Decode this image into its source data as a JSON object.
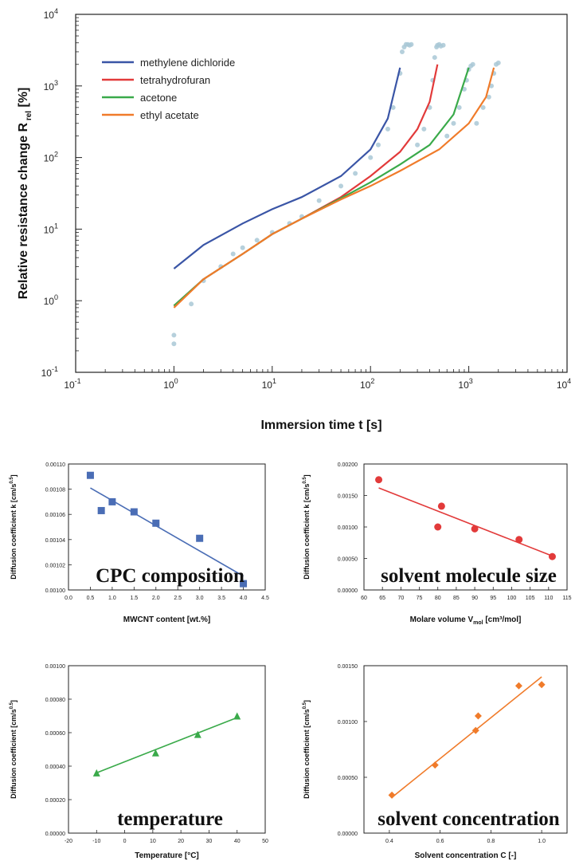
{
  "chart_data": [
    {
      "type": "line",
      "xlabel": "Immersion time t [s]",
      "ylabel": "Relative resistance change R",
      "ylabel_sub": "rel",
      "ylabel_unit": "[%]",
      "xscale": "log",
      "yscale": "log",
      "xlim": [
        0.1,
        10000
      ],
      "ylim": [
        0.1,
        10000
      ],
      "xticks": [
        {
          "v": 0.1,
          "b": "10",
          "e": "-1"
        },
        {
          "v": 1,
          "b": "10",
          "e": "0"
        },
        {
          "v": 10,
          "b": "10",
          "e": "1"
        },
        {
          "v": 100,
          "b": "10",
          "e": "2"
        },
        {
          "v": 1000,
          "b": "10",
          "e": "3"
        },
        {
          "v": 10000,
          "b": "10",
          "e": "4"
        }
      ],
      "yticks": [
        {
          "v": 0.1,
          "b": "10",
          "e": "-1"
        },
        {
          "v": 1,
          "b": "10",
          "e": "0"
        },
        {
          "v": 10,
          "b": "10",
          "e": "1"
        },
        {
          "v": 100,
          "b": "10",
          "e": "2"
        },
        {
          "v": 1000,
          "b": "10",
          "e": "3"
        },
        {
          "v": 10000,
          "b": "10",
          "e": "4"
        }
      ],
      "legend_position": "top-left",
      "series": [
        {
          "name": "methylene dichloride",
          "color": "#3a55a6",
          "x": [
            1,
            2,
            5,
            10,
            20,
            50,
            100,
            150,
            200
          ],
          "y": [
            2.8,
            6,
            12,
            19,
            28,
            55,
            130,
            350,
            1800
          ]
        },
        {
          "name": "tetrahydrofuran",
          "color": "#e23a3a",
          "x": [
            1,
            2,
            5,
            10,
            20,
            50,
            100,
            200,
            300,
            400,
            480
          ],
          "y": [
            0.85,
            2,
            4.5,
            8.5,
            14,
            28,
            55,
            120,
            250,
            600,
            2000
          ]
        },
        {
          "name": "acetone",
          "color": "#3aaa4a",
          "x": [
            1,
            2,
            5,
            10,
            20,
            50,
            100,
            200,
            400,
            700,
            1000
          ],
          "y": [
            0.85,
            2,
            4.5,
            8.5,
            14,
            27,
            45,
            80,
            150,
            400,
            1800
          ]
        },
        {
          "name": "ethyl acetate",
          "color": "#f07b2a",
          "x": [
            1,
            2,
            5,
            10,
            20,
            50,
            100,
            200,
            500,
            1000,
            1500,
            1800
          ],
          "y": [
            0.8,
            2,
            4.5,
            8.5,
            14,
            26,
            40,
            65,
            130,
            300,
            700,
            1800
          ]
        }
      ],
      "scatter_color": "#a9c8d6",
      "scatter": {
        "x": [
          1,
          1,
          1.5,
          2,
          3,
          4,
          5,
          7,
          10,
          15,
          20,
          30,
          50,
          70,
          100,
          120,
          150,
          170,
          200,
          210,
          220,
          230,
          240,
          250,
          260,
          300,
          350,
          400,
          430,
          450,
          470,
          480,
          500,
          520,
          550,
          600,
          700,
          800,
          900,
          950,
          1000,
          1050,
          1100,
          1200,
          1400,
          1600,
          1700,
          1800,
          1900,
          2000
        ],
        "y": [
          0.25,
          0.33,
          0.9,
          1.9,
          3,
          4.5,
          5.5,
          7,
          9,
          12,
          15,
          25,
          40,
          60,
          100,
          150,
          250,
          500,
          1500,
          3000,
          3500,
          3800,
          3800,
          3700,
          3800,
          150,
          250,
          500,
          1200,
          2500,
          3500,
          3700,
          3800,
          3600,
          3700,
          200,
          300,
          500,
          900,
          1200,
          1700,
          1900,
          2000,
          300,
          500,
          700,
          1000,
          1500,
          2000,
          2100
        ]
      }
    },
    {
      "type": "scatter",
      "title": "CPC composition",
      "xlabel": "MWCNT content [wt.%]",
      "ylabel": "Diffusion coefficient k [cm/s",
      "ylabel_sup": "0.5",
      "ylabel_end": "]",
      "color": "#4a6db5",
      "marker": "square",
      "xlim": [
        0,
        4.5
      ],
      "ylim": [
        0.001,
        0.0011
      ],
      "xticks": [
        "0.0",
        "0.5",
        "1.0",
        "1.5",
        "2.0",
        "2.5",
        "3.0",
        "3.5",
        "4.0",
        "4.5"
      ],
      "yticks": [
        "0.00100",
        "0.00102",
        "0.00104",
        "0.00106",
        "0.00108",
        "0.00110"
      ],
      "x": [
        0.5,
        0.75,
        1.0,
        1.5,
        2.0,
        3.0,
        4.0
      ],
      "y": [
        0.001091,
        0.001063,
        0.00107,
        0.001062,
        0.001053,
        0.001041,
        0.001005
      ],
      "fit": {
        "x": [
          0.5,
          4.0
        ],
        "y": [
          0.001081,
          0.001011
        ]
      }
    },
    {
      "type": "scatter",
      "title": "solvent molecule size",
      "xlabel": "Molare volume V",
      "xlabel_sub": "mol",
      "xlabel_end": " [cm³/mol]",
      "ylabel": "Diffusion coefficient k [cm/s",
      "ylabel_sup": "0.5",
      "ylabel_end": "]",
      "color": "#e23a3a",
      "marker": "circle",
      "xlim": [
        60,
        115
      ],
      "ylim": [
        0,
        0.002
      ],
      "xticks": [
        "60",
        "65",
        "70",
        "75",
        "80",
        "85",
        "90",
        "95",
        "100",
        "105",
        "110",
        "115"
      ],
      "yticks": [
        "0.00000",
        "0.00050",
        "0.00100",
        "0.00150",
        "0.00200"
      ],
      "x": [
        64,
        80,
        81,
        90,
        102,
        111
      ],
      "y": [
        0.00175,
        0.001,
        0.00133,
        0.00097,
        0.0008,
        0.00053
      ],
      "fit": {
        "x": [
          64,
          111
        ],
        "y": [
          0.00162,
          0.00054
        ]
      }
    },
    {
      "type": "scatter",
      "title": "temperature",
      "xlabel": "Temperature [°C]",
      "ylabel": "Diffusion coefficient [cm/s",
      "ylabel_sup": "0.5",
      "ylabel_end": "]",
      "color": "#3aaa4a",
      "marker": "triangle",
      "xlim": [
        -20,
        50
      ],
      "ylim": [
        0,
        0.001
      ],
      "xticks": [
        "-20",
        "-10",
        "0",
        "10",
        "20",
        "30",
        "40",
        "50"
      ],
      "yticks": [
        "0.00000",
        "0.00020",
        "0.00040",
        "0.00060",
        "0.00080",
        "0.00100"
      ],
      "x": [
        -10,
        11,
        26,
        40
      ],
      "y": [
        0.00036,
        0.00048,
        0.00059,
        0.0007
      ],
      "fit": {
        "x": [
          -10,
          40
        ],
        "y": [
          0.00036,
          0.00069
        ]
      }
    },
    {
      "type": "scatter",
      "title": "solvent concentration",
      "xlabel": "Solvent concentration C [-]",
      "ylabel": "Diffusion coefficient [cm/s",
      "ylabel_sup": "0.5",
      "ylabel_end": "]",
      "color": "#f07b2a",
      "marker": "diamond",
      "xlim": [
        0.3,
        1.1
      ],
      "ylim": [
        0,
        0.0015
      ],
      "xticks": [
        "0.4",
        "0.6",
        "0.8",
        "1.0"
      ],
      "xtick_values": [
        0.4,
        0.6,
        0.8,
        1.0
      ],
      "yticks": [
        "0.00000",
        "0.00050",
        "0.00100",
        "0.00150"
      ],
      "x": [
        0.41,
        0.58,
        0.74,
        0.75,
        0.91,
        1.0
      ],
      "y": [
        0.00034,
        0.00061,
        0.00092,
        0.00105,
        0.00132,
        0.00133
      ],
      "fit": {
        "x": [
          0.41,
          1.0
        ],
        "y": [
          0.00032,
          0.0014
        ]
      }
    }
  ]
}
